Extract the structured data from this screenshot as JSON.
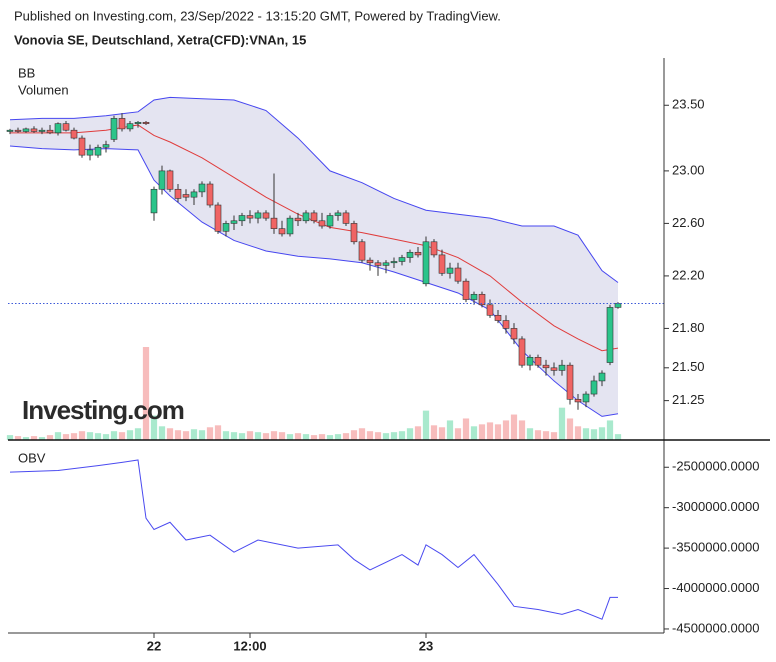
{
  "header": {
    "published": "Published on Investing.com, 23/Sep/2022 - 13:15:20 GMT, Powered by TradingView.",
    "instrument": "Vonovia SE, Deutschland, Xetra(CFD):VNAn, 15",
    "logo": "Investing.com"
  },
  "chart_data": [
    {
      "type": "candlestick",
      "x": [
        0,
        1,
        2,
        3,
        4,
        5,
        6,
        7,
        8,
        9,
        10,
        11,
        12,
        13,
        14,
        15,
        16,
        17,
        18,
        19,
        20,
        21,
        22,
        23,
        24,
        25,
        26,
        27,
        28,
        29,
        30,
        31,
        32,
        33,
        34,
        35,
        36,
        37,
        38,
        39,
        40,
        41,
        42,
        43,
        44,
        45,
        46,
        47,
        48,
        49,
        50,
        51,
        52,
        53,
        54,
        55,
        56,
        57,
        58,
        59,
        60,
        61,
        62,
        63,
        64,
        65,
        66,
        67,
        68,
        69,
        70,
        71,
        72,
        73,
        74,
        75,
        76
      ],
      "open": [
        23.3,
        23.31,
        23.3,
        23.32,
        23.3,
        23.31,
        23.29,
        23.36,
        23.31,
        23.25,
        23.12,
        23.12,
        23.18,
        23.24,
        23.4,
        23.32,
        23.36,
        23.37,
        22.68,
        22.86,
        23.0,
        22.86,
        22.82,
        22.8,
        22.84,
        22.9,
        22.74,
        22.54,
        22.6,
        22.62,
        22.66,
        22.64,
        22.68,
        22.64,
        22.56,
        22.52,
        22.64,
        22.62,
        22.68,
        22.62,
        22.58,
        22.66,
        22.68,
        22.6,
        22.46,
        22.32,
        22.3,
        22.28,
        22.3,
        22.31,
        22.34,
        22.38,
        22.14,
        22.46,
        22.36,
        22.22,
        22.26,
        22.16,
        22.02,
        22.06,
        21.98,
        21.9,
        21.86,
        21.8,
        21.72,
        21.52,
        21.58,
        21.52,
        21.5,
        21.48,
        21.52,
        21.26,
        21.24,
        21.3,
        21.4,
        21.54,
        21.96
      ],
      "high": [
        23.32,
        23.33,
        23.33,
        23.34,
        23.33,
        23.35,
        23.37,
        23.38,
        23.33,
        23.27,
        23.2,
        23.2,
        23.23,
        23.42,
        23.44,
        23.38,
        23.38,
        23.38,
        22.88,
        23.04,
        23.01,
        22.9,
        22.86,
        22.86,
        22.92,
        22.92,
        22.76,
        22.62,
        22.66,
        22.68,
        22.7,
        22.7,
        22.7,
        22.98,
        22.62,
        22.66,
        22.68,
        22.7,
        22.7,
        22.68,
        22.68,
        22.7,
        22.7,
        22.62,
        22.48,
        22.34,
        22.32,
        22.32,
        22.34,
        22.36,
        22.4,
        22.42,
        22.5,
        22.48,
        22.4,
        22.3,
        22.3,
        22.18,
        22.08,
        22.08,
        22.02,
        21.94,
        21.9,
        21.84,
        21.74,
        21.6,
        21.6,
        21.56,
        21.54,
        21.56,
        21.54,
        21.3,
        21.32,
        21.44,
        21.48,
        21.98,
        22.0
      ],
      "low": [
        23.28,
        23.29,
        23.29,
        23.29,
        23.28,
        23.28,
        23.27,
        23.3,
        23.24,
        23.1,
        23.08,
        23.1,
        23.14,
        23.22,
        23.3,
        23.3,
        23.33,
        23.35,
        22.62,
        22.82,
        22.84,
        22.76,
        22.77,
        22.74,
        22.8,
        22.72,
        22.52,
        22.5,
        22.55,
        22.58,
        22.6,
        22.6,
        22.62,
        22.52,
        22.5,
        22.5,
        22.58,
        22.6,
        22.6,
        22.56,
        22.56,
        22.62,
        22.58,
        22.44,
        22.3,
        22.24,
        22.2,
        22.22,
        22.26,
        22.28,
        22.3,
        22.34,
        22.12,
        22.34,
        22.2,
        22.18,
        22.14,
        22.0,
        21.98,
        21.96,
        21.88,
        21.84,
        21.76,
        21.68,
        21.5,
        21.48,
        21.5,
        21.44,
        21.44,
        21.44,
        21.22,
        21.18,
        21.2,
        21.28,
        21.36,
        21.52,
        21.95
      ],
      "close": [
        23.31,
        23.3,
        23.32,
        23.3,
        23.31,
        23.29,
        23.36,
        23.31,
        23.25,
        23.12,
        23.16,
        23.18,
        23.2,
        23.4,
        23.32,
        23.36,
        23.37,
        23.36,
        22.86,
        23.0,
        22.86,
        22.79,
        22.8,
        22.84,
        22.9,
        22.74,
        22.54,
        22.6,
        22.62,
        22.66,
        22.64,
        22.68,
        22.64,
        22.56,
        22.52,
        22.64,
        22.62,
        22.68,
        22.62,
        22.58,
        22.66,
        22.68,
        22.6,
        22.46,
        22.32,
        22.3,
        22.28,
        22.3,
        22.31,
        22.34,
        22.38,
        22.36,
        22.46,
        22.36,
        22.22,
        22.26,
        22.16,
        22.02,
        22.06,
        21.98,
        21.9,
        21.86,
        21.8,
        21.72,
        21.52,
        21.58,
        21.52,
        21.5,
        21.48,
        21.52,
        21.26,
        21.24,
        21.3,
        21.4,
        21.46,
        21.96,
        21.99
      ],
      "volume": {
        "name": "Volumen",
        "values": [
          5000,
          4000,
          3000,
          4000,
          3000,
          5000,
          8000,
          6000,
          7000,
          9000,
          8000,
          7000,
          6000,
          9000,
          8000,
          10000,
          12000,
          95000,
          25000,
          14000,
          12000,
          10000,
          9000,
          11000,
          10000,
          13000,
          15000,
          9000,
          8000,
          7000,
          9000,
          8000,
          7000,
          9000,
          8000,
          6000,
          7000,
          6000,
          5000,
          6000,
          5000,
          6000,
          7000,
          10000,
          12000,
          9000,
          8000,
          7000,
          8000,
          9000,
          12000,
          14000,
          30000,
          15000,
          13000,
          20000,
          12000,
          22000,
          14000,
          16000,
          18000,
          16000,
          20000,
          26000,
          20000,
          12000,
          10000,
          9000,
          8000,
          33000,
          22000,
          14000,
          12000,
          11000,
          13000,
          20000,
          6000
        ]
      },
      "bands": {
        "name": "BB",
        "x": [
          0,
          4,
          8,
          12,
          16,
          18,
          20,
          24,
          28,
          32,
          36,
          40,
          44,
          48,
          52,
          56,
          60,
          64,
          68,
          71,
          74,
          76
        ],
        "upper": [
          23.39,
          23.4,
          23.4,
          23.42,
          23.45,
          23.54,
          23.56,
          23.55,
          23.54,
          23.46,
          23.25,
          23.0,
          22.91,
          22.79,
          22.7,
          22.67,
          22.64,
          22.58,
          22.58,
          22.51,
          22.24,
          22.15
        ],
        "middle": [
          23.29,
          23.29,
          23.29,
          23.31,
          23.35,
          23.27,
          23.22,
          23.1,
          22.95,
          22.8,
          22.67,
          22.57,
          22.53,
          22.48,
          22.43,
          22.34,
          22.2,
          22.0,
          21.82,
          21.72,
          21.63,
          21.65
        ],
        "lower": [
          23.19,
          23.17,
          23.16,
          23.17,
          23.16,
          22.93,
          22.81,
          22.61,
          22.47,
          22.39,
          22.35,
          22.33,
          22.3,
          22.23,
          22.15,
          22.07,
          21.94,
          21.63,
          21.4,
          21.25,
          21.13,
          21.15
        ]
      },
      "colors": {
        "up": "#2bc48a",
        "down": "#f06464",
        "volume_up": "#a9e9cd",
        "volume_down": "#f7bcbc",
        "band": "#e4e4f1",
        "band_line": "#4646f0",
        "middle": "#e03c3c",
        "last": "#3c5ad8"
      },
      "xlim": [
        -0.25,
        81.75
      ],
      "ylim": [
        20.95,
        23.86
      ],
      "yticks": [
        {
          "value": 23.5,
          "label": "23.50"
        },
        {
          "value": 23.0,
          "label": "23.00"
        },
        {
          "value": 22.6,
          "label": "22.60"
        },
        {
          "value": 22.2,
          "label": "22.20"
        },
        {
          "value": 21.8,
          "label": "21.80"
        },
        {
          "value": 21.5,
          "label": "21.50"
        },
        {
          "value": 21.25,
          "label": "21.25"
        }
      ]
    },
    {
      "type": "line",
      "title": "OBV",
      "series": [
        {
          "name": "OBV",
          "color": "#4a4af0",
          "x": [
            0,
            6,
            11,
            14,
            16,
            17,
            18,
            20,
            22,
            25,
            28,
            31,
            36,
            41,
            43,
            45,
            49,
            51,
            52,
            54,
            56,
            58,
            61,
            63,
            66,
            69,
            71,
            74,
            75,
            76
          ],
          "values": [
            -2560000,
            -2540000,
            -2480000,
            -2440000,
            -2410000,
            -3130000,
            -3270000,
            -3180000,
            -3400000,
            -3340000,
            -3550000,
            -3400000,
            -3500000,
            -3460000,
            -3640000,
            -3770000,
            -3580000,
            -3710000,
            -3460000,
            -3580000,
            -3740000,
            -3580000,
            -3950000,
            -4220000,
            -4260000,
            -4320000,
            -4260000,
            -4380000,
            -4110000,
            -4110000
          ]
        }
      ],
      "xlim": [
        -0.25,
        81.75
      ],
      "ylim": [
        -4550000,
        -2200000
      ],
      "yticks": [
        {
          "value": -2500000,
          "label": "-2500000.0000"
        },
        {
          "value": -3000000,
          "label": "-3000000.0000"
        },
        {
          "value": -3500000,
          "label": "-3500000.0000"
        },
        {
          "value": -4000000,
          "label": "-4000000.0000"
        },
        {
          "value": -4500000,
          "label": "-4500000.0000"
        }
      ],
      "xticks": [
        {
          "value": 18,
          "label": "22"
        },
        {
          "value": 30,
          "label": "12:00"
        },
        {
          "value": 52,
          "label": "23"
        }
      ]
    }
  ]
}
